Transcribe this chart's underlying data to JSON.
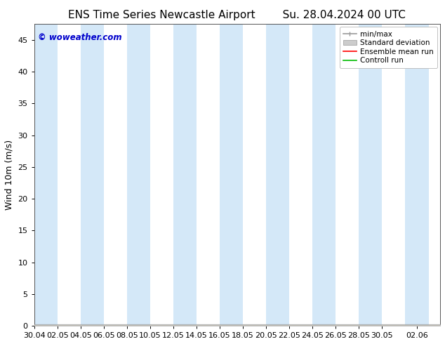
{
  "title_left": "ENS Time Series Newcastle Airport",
  "title_right": "Su. 28.04.2024 00 UTC",
  "ylabel": "Wind 10m (m/s)",
  "ylim": [
    0,
    47.5
  ],
  "yticks": [
    0,
    5,
    10,
    15,
    20,
    25,
    30,
    35,
    40,
    45
  ],
  "xlabel_ticks": [
    "30.04",
    "02.05",
    "04.05",
    "06.05",
    "08.05",
    "10.05",
    "12.05",
    "14.05",
    "16.05",
    "18.05",
    "20.05",
    "22.05",
    "24.05",
    "26.05",
    "28.05",
    "30.05",
    "02.06"
  ],
  "xlabel_tick_days": [
    0,
    2,
    4,
    6,
    8,
    10,
    12,
    14,
    16,
    18,
    20,
    22,
    24,
    26,
    28,
    30,
    33
  ],
  "bg_color": "#ffffff",
  "plot_bg_color": "#ffffff",
  "shaded_color": "#d4e8f8",
  "legend_labels": [
    "min/max",
    "Standard deviation",
    "Ensemble mean run",
    "Controll run"
  ],
  "legend_colors": [
    "#999999",
    "#cccccc",
    "#ff0000",
    "#00bb00"
  ],
  "watermark_text": "© woweather.com",
  "watermark_color": "#0000cc",
  "title_fontsize": 11,
  "axis_fontsize": 9,
  "tick_fontsize": 8,
  "legend_fontsize": 7.5
}
